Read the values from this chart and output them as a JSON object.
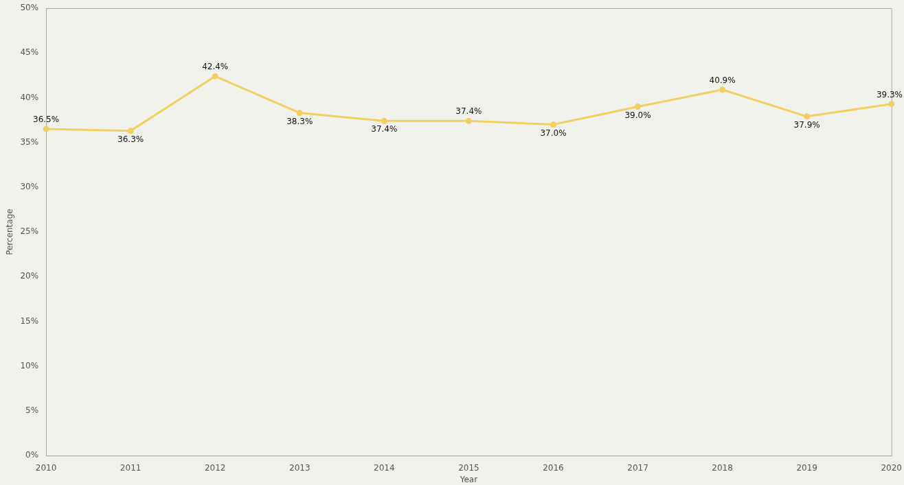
{
  "chart_data": {
    "type": "line",
    "xlabel": "Year",
    "ylabel": "Percentage",
    "categories": [
      "2010",
      "2011",
      "2012",
      "2013",
      "2014",
      "2015",
      "2016",
      "2017",
      "2018",
      "2019",
      "2020"
    ],
    "values": [
      36.5,
      36.3,
      42.4,
      38.3,
      37.4,
      37.4,
      37.0,
      39.0,
      40.9,
      37.9,
      39.3
    ],
    "value_labels": [
      "36.5%",
      "36.3%",
      "42.4%",
      "38.3%",
      "37.4%",
      "37.4%",
      "37.0%",
      "39.0%",
      "40.9%",
      "37.9%",
      "39.3%"
    ],
    "color": "#f2cf5f",
    "marker": "circle",
    "grid": false,
    "legend": false,
    "ylim": [
      0,
      50
    ],
    "yticks": [
      {
        "value": 0,
        "label": "0%"
      },
      {
        "value": 5,
        "label": "5%"
      },
      {
        "value": 10,
        "label": "10%"
      },
      {
        "value": 15,
        "label": "15%"
      },
      {
        "value": 20,
        "label": "20%"
      },
      {
        "value": 25,
        "label": "25%"
      },
      {
        "value": 30,
        "label": "30%"
      },
      {
        "value": 35,
        "label": "35%"
      },
      {
        "value": 40,
        "label": "40%"
      },
      {
        "value": 45,
        "label": "45%"
      },
      {
        "value": 50,
        "label": "50%"
      }
    ]
  }
}
